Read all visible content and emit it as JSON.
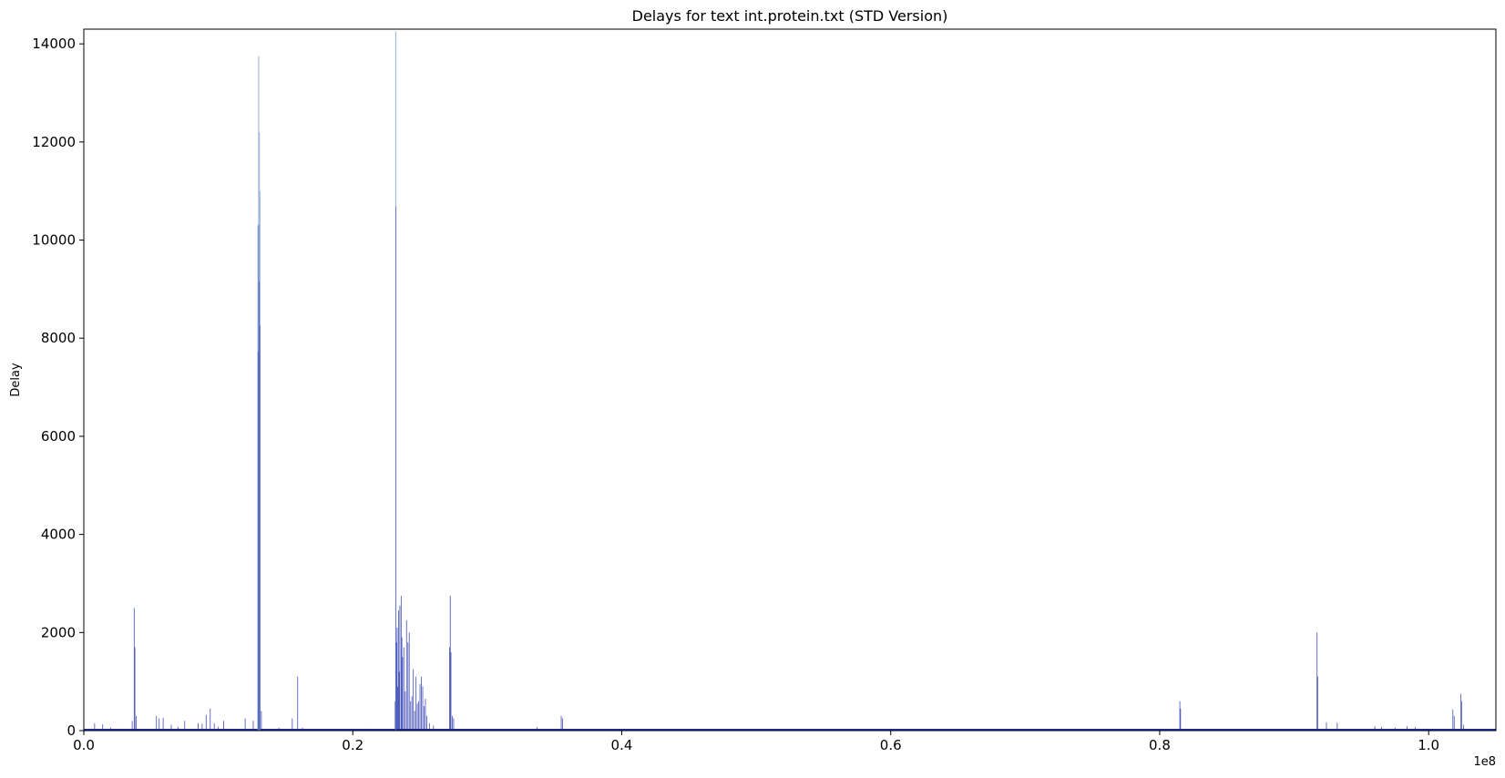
{
  "chart_data": {
    "type": "line",
    "title": "Delays for text int.protein.txt (STD Version)",
    "xlabel": "",
    "ylabel": "Delay",
    "x_offset_text": "1e8",
    "xlim": [
      0,
      1.05
    ],
    "ylim": [
      0,
      14300
    ],
    "x_ticks": [
      0.0,
      0.2,
      0.4,
      0.6,
      0.8,
      1.0
    ],
    "x_tick_labels": [
      "0.0",
      "0.2",
      "0.4",
      "0.6",
      "0.8",
      "1.0"
    ],
    "y_ticks": [
      0,
      2000,
      4000,
      6000,
      8000,
      10000,
      12000,
      14000
    ],
    "y_tick_labels": [
      "0",
      "2000",
      "4000",
      "6000",
      "8000",
      "10000",
      "12000",
      "14000"
    ],
    "grid": false,
    "colors": {
      "series": "#1f2fa8",
      "light": "#9fb8dc"
    },
    "series": [
      {
        "points": [
          [
            0.008,
            150
          ],
          [
            0.014,
            130
          ],
          [
            0.02,
            60
          ],
          [
            0.028,
            40
          ],
          [
            0.036,
            200
          ],
          [
            0.0375,
            2500
          ],
          [
            0.038,
            1700
          ],
          [
            0.039,
            300
          ],
          [
            0.054,
            300
          ],
          [
            0.056,
            250
          ],
          [
            0.059,
            260
          ],
          [
            0.065,
            120
          ],
          [
            0.07,
            80
          ],
          [
            0.075,
            200
          ],
          [
            0.085,
            150
          ],
          [
            0.088,
            140
          ],
          [
            0.091,
            320
          ],
          [
            0.094,
            450
          ],
          [
            0.097,
            150
          ],
          [
            0.1,
            80
          ],
          [
            0.104,
            200
          ],
          [
            0.11,
            40
          ],
          [
            0.12,
            250
          ],
          [
            0.126,
            200
          ],
          [
            0.1295,
            10300
          ],
          [
            0.13,
            13750
          ],
          [
            0.1305,
            12200
          ],
          [
            0.131,
            11000
          ],
          [
            0.132,
            400
          ],
          [
            0.145,
            60
          ],
          [
            0.155,
            250
          ],
          [
            0.159,
            1100
          ],
          [
            0.1625,
            60
          ],
          [
            0.2,
            30
          ],
          [
            0.21,
            40
          ],
          [
            0.2315,
            600
          ],
          [
            0.232,
            14250
          ],
          [
            0.2325,
            1800
          ],
          [
            0.233,
            2100
          ],
          [
            0.2335,
            900
          ],
          [
            0.234,
            2450
          ],
          [
            0.2345,
            1200
          ],
          [
            0.235,
            2550
          ],
          [
            0.236,
            2750
          ],
          [
            0.2365,
            1900
          ],
          [
            0.237,
            1500
          ],
          [
            0.238,
            1700
          ],
          [
            0.239,
            800
          ],
          [
            0.24,
            2250
          ],
          [
            0.241,
            1800
          ],
          [
            0.242,
            2000
          ],
          [
            0.243,
            600
          ],
          [
            0.244,
            700
          ],
          [
            0.245,
            1250
          ],
          [
            0.246,
            400
          ],
          [
            0.247,
            1100
          ],
          [
            0.248,
            550
          ],
          [
            0.249,
            600
          ],
          [
            0.25,
            950
          ],
          [
            0.251,
            1100
          ],
          [
            0.252,
            900
          ],
          [
            0.253,
            500
          ],
          [
            0.254,
            650
          ],
          [
            0.255,
            300
          ],
          [
            0.257,
            150
          ],
          [
            0.26,
            100
          ],
          [
            0.272,
            1700
          ],
          [
            0.2725,
            2750
          ],
          [
            0.273,
            1600
          ],
          [
            0.274,
            300
          ],
          [
            0.275,
            250
          ],
          [
            0.337,
            70
          ],
          [
            0.355,
            300
          ],
          [
            0.356,
            250
          ],
          [
            0.39,
            20
          ],
          [
            0.5,
            15
          ],
          [
            0.56,
            10
          ],
          [
            0.65,
            12
          ],
          [
            0.7,
            15
          ],
          [
            0.75,
            10
          ],
          [
            0.78,
            8
          ],
          [
            0.815,
            600
          ],
          [
            0.8155,
            450
          ],
          [
            0.917,
            2000
          ],
          [
            0.9175,
            1100
          ],
          [
            0.924,
            170
          ],
          [
            0.932,
            160
          ],
          [
            0.96,
            90
          ],
          [
            0.965,
            80
          ],
          [
            0.975,
            60
          ],
          [
            0.984,
            90
          ],
          [
            0.99,
            70
          ],
          [
            1.018,
            430
          ],
          [
            1.019,
            300
          ],
          [
            1.024,
            750
          ],
          [
            1.0245,
            600
          ],
          [
            1.026,
            120
          ]
        ]
      }
    ]
  }
}
